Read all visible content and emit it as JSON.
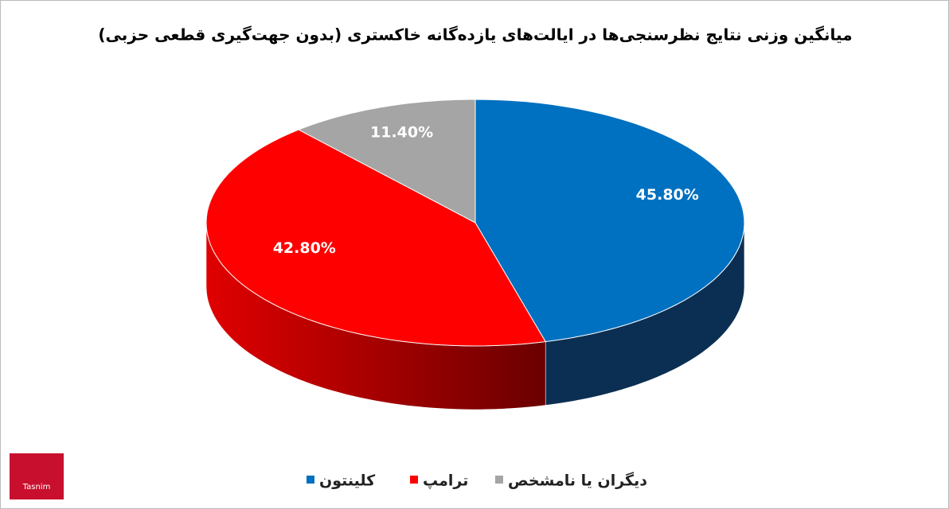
{
  "chart_data": {
    "type": "pie3d",
    "title": "میانگین وزنی نتایج نظرسنجی‌ها در ایالت‌های یازده‌گانه خاکستری (بدون جهت‌گیری قطعی حزبی)",
    "series": [
      {
        "name": "کلینتون",
        "color": "#0070c0",
        "values": [
          45.8
        ],
        "value_labels": [
          "45.80%"
        ]
      },
      {
        "name": "ترامپ",
        "color": "#ff0000",
        "values": [
          42.8
        ],
        "value_labels": [
          "42.80%"
        ]
      },
      {
        "name": "دیگران یا نامشخص",
        "color": "#a5a5a5",
        "values": [
          11.4
        ],
        "value_labels": [
          "11.40%"
        ]
      }
    ],
    "logo": "Tasnim"
  }
}
